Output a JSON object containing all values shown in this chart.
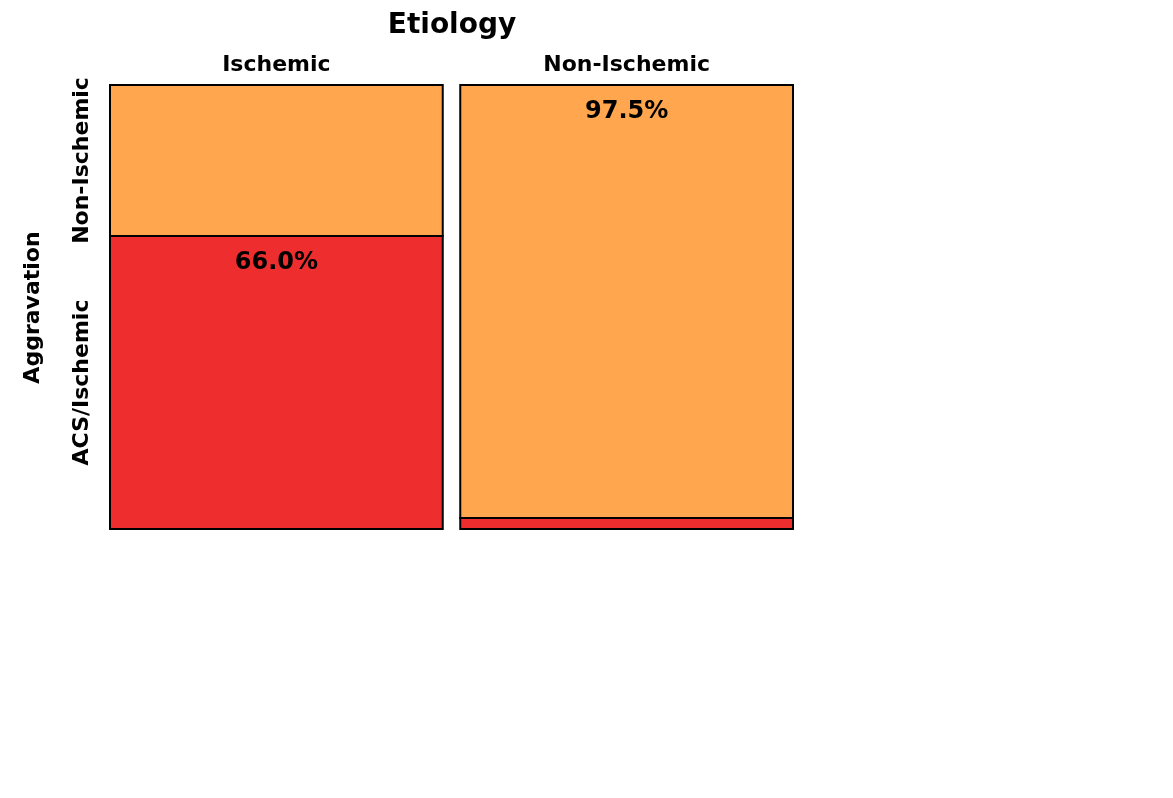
{
  "chart_data": {
    "type": "bar",
    "stacked": true,
    "tick_labels": "x",
    "xlabel": "Etiology",
    "ylabel": "Aggravation",
    "categories": [
      "Ischemic",
      "Non-Ischemic"
    ],
    "series": [
      {
        "name": "ACS/Ischemic",
        "color": "#ee2e2e",
        "values": [
          66.0,
          2.5
        ],
        "value_labels": [
          "66.0%",
          null
        ]
      },
      {
        "name": "Non-Ischemic",
        "color": "#ffa64f",
        "values": [
          34.0,
          97.5
        ],
        "value_labels": [
          null,
          "97.5%"
        ]
      }
    ],
    "grid": false
  }
}
